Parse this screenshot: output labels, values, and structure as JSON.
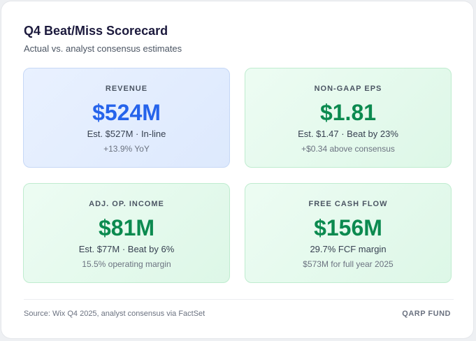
{
  "header": {
    "title": "Q4 Beat/Miss Scorecard",
    "subtitle": "Actual vs. analyst consensus estimates"
  },
  "tiles": [
    {
      "label": "REVENUE",
      "value": "$524M",
      "detail": "Est. $527M · In-line",
      "note": "+13.9% YoY",
      "status": "in-line",
      "color": "#2563eb"
    },
    {
      "label": "NON-GAAP EPS",
      "value": "$1.81",
      "detail": "Est. $1.47 · Beat by 23%",
      "note": "+$0.34 above consensus",
      "status": "beat",
      "color": "#0b8a4f"
    },
    {
      "label": "ADJ. OP. INCOME",
      "value": "$81M",
      "detail": "Est. $77M · Beat by 6%",
      "note": "15.5% operating margin",
      "status": "beat",
      "color": "#0b8a4f"
    },
    {
      "label": "FREE CASH FLOW",
      "value": "$156M",
      "detail": "29.7% FCF margin",
      "note": "$573M for full year 2025",
      "status": "beat",
      "color": "#0b8a4f"
    }
  ],
  "footer": {
    "source": "Source: Wix Q4 2025, analyst consensus via FactSet",
    "brand": "QARP FUND"
  }
}
